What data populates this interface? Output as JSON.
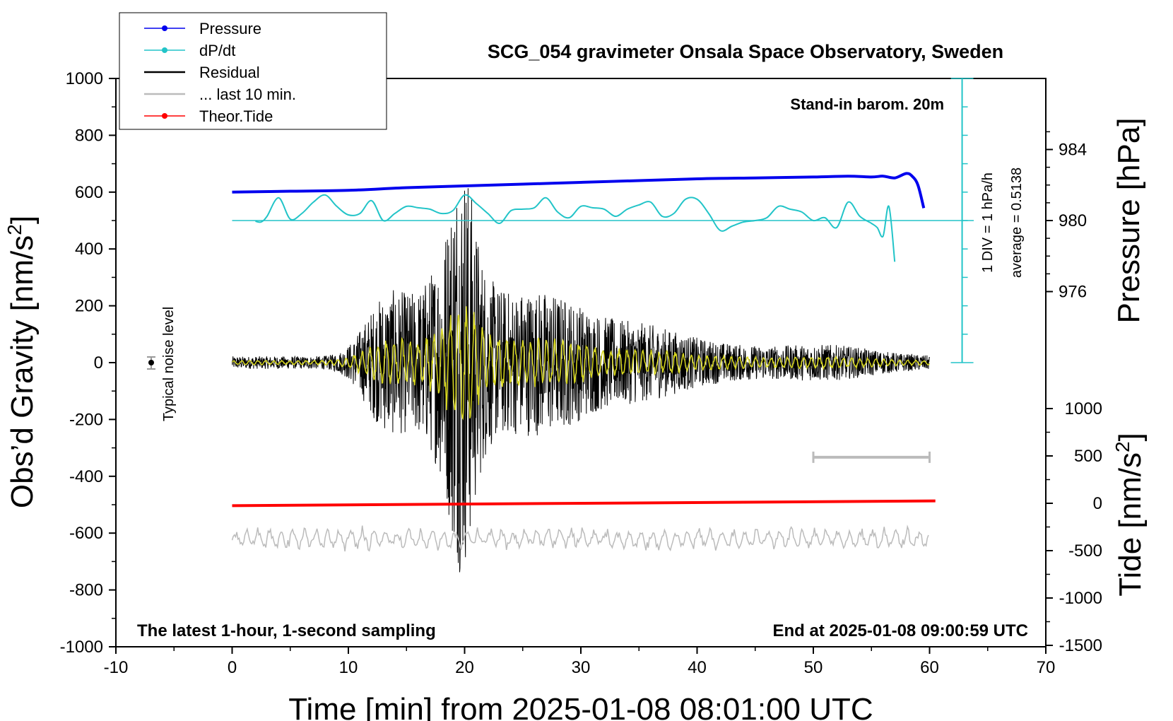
{
  "chart_data": {
    "type": "line",
    "title": "SCG_054 gravimeter Onsala Space Observatory, Sweden",
    "xlabel": "Time [min] from 2025-01-08 08:01:00 UTC",
    "ylabel_left": "Obs’d Gravity [nm/s",
    "ylabel_left_sup": "2",
    "ylabel_left_end": "]",
    "ylabel_pressure": "Pressure [hPa]",
    "ylabel_tide": "Tide [nm/s",
    "ylabel_tide_sup": "2",
    "ylabel_tide_end": "]",
    "xlim": [
      -10,
      70
    ],
    "ylim": [
      -1000,
      1000
    ],
    "xticks": [
      "-10",
      "0",
      "10",
      "20",
      "30",
      "40",
      "50",
      "60",
      "70"
    ],
    "yticks": [
      "1000",
      "800",
      "600",
      "400",
      "200",
      "0",
      "-200",
      "-400",
      "-600",
      "-800",
      "-1000"
    ],
    "pressure_ticks": [
      "984",
      "980",
      "976"
    ],
    "pressure_tick_values": [
      984,
      980,
      976
    ],
    "tide_ticks": [
      "1000",
      "500",
      "0",
      "-500",
      "-1000",
      "-1500"
    ],
    "tide_tick_values": [
      1000,
      500,
      0,
      -500,
      -1000,
      -1500
    ],
    "legend": [
      {
        "label": "Pressure",
        "color": "#0000ee",
        "marker": true
      },
      {
        "label": "dP/dt",
        "color": "#22c4c8",
        "marker": true
      },
      {
        "label": "Residual",
        "color": "#000000",
        "marker": false
      },
      {
        "label": "... last 10 min.",
        "color": "#bbbbbb",
        "marker": false
      },
      {
        "label": "Theor.Tide",
        "color": "#ff0000",
        "marker": true
      }
    ],
    "annotations": {
      "barometer": "Stand-in barom. 20m",
      "div_note": "1 DIV = 1 hPa/h",
      "average": "average = 0.5138",
      "noise": "Typical noise level",
      "bottom_left": "The latest 1-hour, 1-second sampling",
      "bottom_right": "End at 2025-01-08 09:00:59 UTC"
    },
    "series": [
      {
        "name": "Pressure",
        "axis": "pressure",
        "color": "#0000ee",
        "x": [
          0,
          5,
          10,
          15,
          20,
          25,
          30,
          35,
          40,
          45,
          50,
          53,
          55,
          56,
          57,
          58,
          58.5,
          59,
          59.5
        ],
        "y": [
          981.6,
          981.65,
          981.7,
          981.85,
          981.95,
          982.05,
          982.15,
          982.25,
          982.35,
          982.4,
          982.45,
          982.5,
          982.45,
          982.5,
          982.4,
          982.65,
          982.5,
          982.0,
          980.7
        ]
      },
      {
        "name": "dP/dt",
        "axis": "dpdt",
        "color": "#22c4c8",
        "x": [
          2,
          2.5,
          3,
          4,
          5,
          6,
          7,
          8,
          9,
          10,
          11,
          12,
          13,
          14,
          15,
          16,
          17,
          18,
          19,
          20,
          21,
          22,
          23,
          24,
          25,
          26,
          27,
          28,
          29,
          30,
          31,
          32,
          33,
          34,
          35,
          36,
          37,
          38,
          39,
          40,
          41,
          42,
          43,
          44,
          45,
          46,
          47,
          48,
          49,
          50,
          51,
          52,
          53,
          54,
          55,
          55.5,
          56,
          56.5,
          57
        ],
        "y": [
          -0.05,
          -0.1,
          0.3,
          1.6,
          0.1,
          0.5,
          1.3,
          1.8,
          1.0,
          0.4,
          0.5,
          1.4,
          0.0,
          0.5,
          1.0,
          0.9,
          0.8,
          0.5,
          0.7,
          1.8,
          1.2,
          0.5,
          -0.2,
          0.7,
          0.8,
          0.9,
          1.6,
          0.6,
          0.2,
          1.0,
          0.9,
          0.8,
          0.3,
          0.8,
          1.1,
          1.3,
          0.3,
          0.5,
          1.5,
          1.5,
          0.5,
          -0.7,
          -0.4,
          -0.1,
          0.0,
          0.2,
          1.0,
          0.8,
          0.6,
          0.0,
          0.2,
          -0.5,
          1.3,
          0.3,
          -0.2,
          -0.5,
          -1.1,
          1.0,
          -2.9
        ]
      },
      {
        "name": "Theor.Tide",
        "axis": "tide",
        "color": "#ff0000",
        "x": [
          0,
          60.5
        ],
        "y": [
          -25,
          25
        ]
      }
    ],
    "dpdt_scale": {
      "zero_at_gravity": 500,
      "units_per_div": 1,
      "divisions": 10
    }
  }
}
